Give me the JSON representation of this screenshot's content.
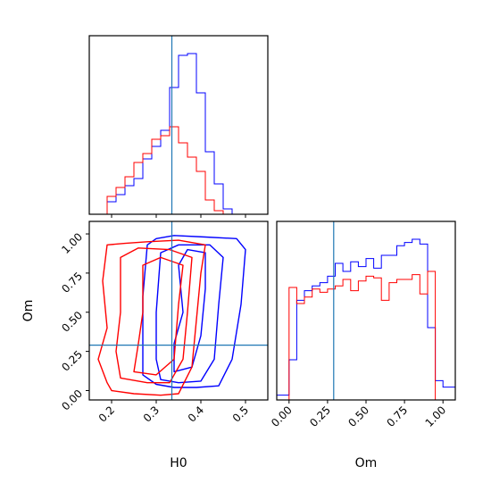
{
  "chart_data": [
    {
      "type": "histogram",
      "panel": "H0 marginal",
      "x_range": [
        0.15,
        0.55
      ],
      "truth_line": 0.335,
      "x_ticks": [
        0.2,
        0.3,
        0.4,
        0.5
      ],
      "series": [
        {
          "color": "#0000ff",
          "bin_edges": [
            0.15,
            0.17,
            0.19,
            0.21,
            0.23,
            0.25,
            0.27,
            0.29,
            0.31,
            0.33,
            0.35,
            0.37,
            0.39,
            0.41,
            0.43,
            0.45,
            0.47,
            0.49,
            0.51,
            0.53,
            0.55
          ],
          "counts": [
            0,
            0,
            0.07,
            0.11,
            0.16,
            0.2,
            0.31,
            0.38,
            0.47,
            0.71,
            0.89,
            0.9,
            0.68,
            0.35,
            0.17,
            0.03,
            0,
            0,
            0,
            0
          ]
        },
        {
          "color": "#ff0000",
          "bin_edges": [
            0.15,
            0.17,
            0.19,
            0.21,
            0.23,
            0.25,
            0.27,
            0.29,
            0.31,
            0.33,
            0.35,
            0.37,
            0.39,
            0.41,
            0.43,
            0.45,
            0.47,
            0.49,
            0.51,
            0.53,
            0.55
          ],
          "counts": [
            0,
            0,
            0.1,
            0.15,
            0.21,
            0.29,
            0.34,
            0.42,
            0.44,
            0.49,
            0.4,
            0.32,
            0.24,
            0.08,
            0.02,
            0,
            0,
            0,
            0,
            0
          ]
        }
      ]
    },
    {
      "type": "contour",
      "panel": "H0 vs Om joint",
      "xlabel": "H0",
      "ylabel": "Om",
      "x_range": [
        0.15,
        0.55
      ],
      "y_range": [
        -0.06,
        1.08
      ],
      "x_ticks": [
        0.2,
        0.3,
        0.4,
        0.5
      ],
      "y_ticks": [
        0.0,
        0.25,
        0.5,
        0.75,
        1.0
      ],
      "truth": {
        "H0": 0.335,
        "Om": 0.29
      },
      "series": [
        {
          "color": "#0000ff",
          "contours": [
            [
              [
                0.3,
                0.04
              ],
              [
                0.34,
                0.02
              ],
              [
                0.39,
                0.02
              ],
              [
                0.44,
                0.03
              ],
              [
                0.47,
                0.2
              ],
              [
                0.49,
                0.55
              ],
              [
                0.5,
                0.9
              ],
              [
                0.48,
                0.97
              ],
              [
                0.41,
                0.98
              ],
              [
                0.34,
                0.99
              ],
              [
                0.3,
                0.97
              ],
              [
                0.28,
                0.93
              ],
              [
                0.27,
                0.6
              ],
              [
                0.27,
                0.25
              ],
              [
                0.27,
                0.1
              ]
            ],
            [
              [
                0.31,
                0.07
              ],
              [
                0.35,
                0.05
              ],
              [
                0.4,
                0.06
              ],
              [
                0.43,
                0.2
              ],
              [
                0.44,
                0.55
              ],
              [
                0.45,
                0.85
              ],
              [
                0.42,
                0.93
              ],
              [
                0.35,
                0.93
              ],
              [
                0.31,
                0.88
              ],
              [
                0.3,
                0.5
              ],
              [
                0.3,
                0.2
              ]
            ],
            [
              [
                0.34,
                0.12
              ],
              [
                0.38,
                0.15
              ],
              [
                0.4,
                0.35
              ],
              [
                0.41,
                0.65
              ],
              [
                0.41,
                0.88
              ],
              [
                0.37,
                0.9
              ],
              [
                0.35,
                0.8
              ],
              [
                0.36,
                0.5
              ],
              [
                0.34,
                0.3
              ]
            ]
          ]
        },
        {
          "color": "#ff0000",
          "contours": [
            [
              [
                0.2,
                0.0
              ],
              [
                0.25,
                -0.02
              ],
              [
                0.31,
                -0.03
              ],
              [
                0.35,
                -0.02
              ],
              [
                0.38,
                0.15
              ],
              [
                0.39,
                0.45
              ],
              [
                0.4,
                0.75
              ],
              [
                0.41,
                0.93
              ],
              [
                0.35,
                0.96
              ],
              [
                0.28,
                0.95
              ],
              [
                0.23,
                0.94
              ],
              [
                0.19,
                0.93
              ],
              [
                0.18,
                0.7
              ],
              [
                0.19,
                0.4
              ],
              [
                0.17,
                0.2
              ],
              [
                0.19,
                0.05
              ]
            ],
            [
              [
                0.22,
                0.08
              ],
              [
                0.28,
                0.05
              ],
              [
                0.33,
                0.05
              ],
              [
                0.36,
                0.2
              ],
              [
                0.37,
                0.5
              ],
              [
                0.38,
                0.85
              ],
              [
                0.33,
                0.9
              ],
              [
                0.26,
                0.91
              ],
              [
                0.22,
                0.85
              ],
              [
                0.22,
                0.5
              ],
              [
                0.21,
                0.25
              ]
            ],
            [
              [
                0.25,
                0.12
              ],
              [
                0.3,
                0.1
              ],
              [
                0.34,
                0.2
              ],
              [
                0.35,
                0.55
              ],
              [
                0.36,
                0.8
              ],
              [
                0.31,
                0.85
              ],
              [
                0.27,
                0.8
              ],
              [
                0.27,
                0.5
              ],
              [
                0.26,
                0.3
              ]
            ]
          ]
        }
      ]
    },
    {
      "type": "histogram",
      "panel": "Om marginal",
      "xlabel": "Om",
      "x_range": [
        -0.08,
        1.08
      ],
      "truth_line": 0.29,
      "x_ticks": [
        0.0,
        0.25,
        0.5,
        0.75,
        1.0
      ],
      "series": [
        {
          "color": "#0000ff",
          "bin_edges": [
            0.0,
            0.05,
            0.1,
            0.15,
            0.2,
            0.25,
            0.3,
            0.35,
            0.4,
            0.45,
            0.5,
            0.55,
            0.6,
            0.65,
            0.7,
            0.75,
            0.8,
            0.85,
            0.9,
            0.95,
            1.0
          ],
          "counts": [
            0.25,
            0.62,
            0.68,
            0.71,
            0.73,
            0.77,
            0.85,
            0.8,
            0.86,
            0.83,
            0.88,
            0.82,
            0.9,
            0.9,
            0.96,
            0.98,
            1.0,
            0.97,
            0.45,
            0.12
          ],
          "tails": {
            "left": 0.03,
            "right": 0.08
          }
        },
        {
          "color": "#ff0000",
          "bin_edges": [
            0.0,
            0.05,
            0.1,
            0.15,
            0.2,
            0.25,
            0.3,
            0.35,
            0.4,
            0.45,
            0.5,
            0.55,
            0.6,
            0.65,
            0.7,
            0.75,
            0.8,
            0.85,
            0.9,
            0.95,
            1.0
          ],
          "counts": [
            0.7,
            0.6,
            0.64,
            0.69,
            0.67,
            0.69,
            0.71,
            0.75,
            0.68,
            0.74,
            0.77,
            0.76,
            0.62,
            0.73,
            0.75,
            0.75,
            0.78,
            0.66,
            0.8,
            0.0
          ]
        }
      ]
    }
  ]
}
